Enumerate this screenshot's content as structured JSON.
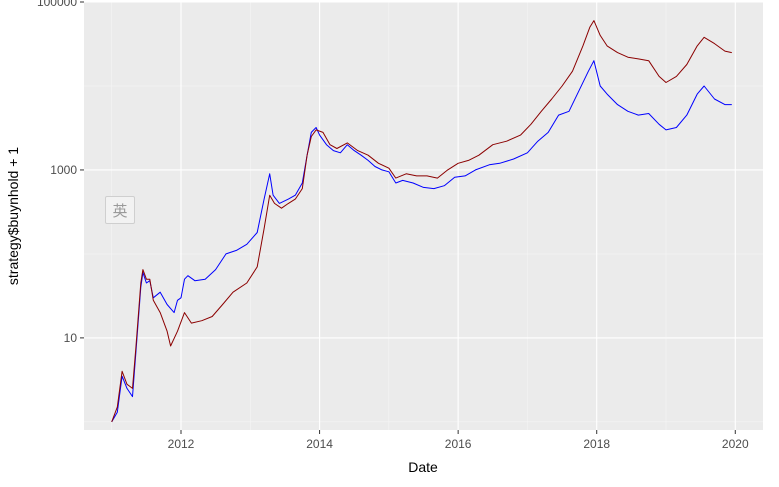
{
  "chart_data": {
    "type": "line",
    "title": "",
    "xlabel": "Date",
    "ylabel": "strategy$buynhold + 1",
    "y_scale": "log10",
    "xlim": [
      2010.6,
      2020.4
    ],
    "ylim": [
      0.8,
      100000
    ],
    "x_ticks": [
      2012,
      2014,
      2016,
      2018,
      2020
    ],
    "x_tick_labels": [
      "2012",
      "2014",
      "2016",
      "2018",
      "2020"
    ],
    "y_ticks": [
      10,
      1000,
      100000
    ],
    "y_tick_labels": [
      "10",
      "1000",
      "100000"
    ],
    "grid": true,
    "legend": "none",
    "series": [
      {
        "color": "#0000ff",
        "points": [
          [
            2011.0,
            1.0
          ],
          [
            2011.08,
            1.3
          ],
          [
            2011.15,
            3.5
          ],
          [
            2011.22,
            2.5
          ],
          [
            2011.3,
            2.0
          ],
          [
            2011.35,
            7.0
          ],
          [
            2011.42,
            40.0
          ],
          [
            2011.45,
            60.0
          ],
          [
            2011.5,
            45.0
          ],
          [
            2011.55,
            48.0
          ],
          [
            2011.6,
            30.0
          ],
          [
            2011.7,
            35.0
          ],
          [
            2011.8,
            25.0
          ],
          [
            2011.9,
            20.0
          ],
          [
            2011.95,
            28.0
          ],
          [
            2012.0,
            30.0
          ],
          [
            2012.05,
            50.0
          ],
          [
            2012.1,
            55.0
          ],
          [
            2012.2,
            48.0
          ],
          [
            2012.35,
            50.0
          ],
          [
            2012.5,
            65.0
          ],
          [
            2012.65,
            100.0
          ],
          [
            2012.8,
            110.0
          ],
          [
            2012.95,
            130.0
          ],
          [
            2013.1,
            180.0
          ],
          [
            2013.2,
            450.0
          ],
          [
            2013.28,
            900.0
          ],
          [
            2013.33,
            500.0
          ],
          [
            2013.42,
            400.0
          ],
          [
            2013.55,
            450.0
          ],
          [
            2013.65,
            500.0
          ],
          [
            2013.75,
            700.0
          ],
          [
            2013.82,
            1500.0
          ],
          [
            2013.88,
            2800.0
          ],
          [
            2013.95,
            3200.0
          ],
          [
            2014.0,
            2600.0
          ],
          [
            2014.1,
            2000.0
          ],
          [
            2014.2,
            1700.0
          ],
          [
            2014.3,
            1600.0
          ],
          [
            2014.4,
            2000.0
          ],
          [
            2014.5,
            1700.0
          ],
          [
            2014.6,
            1500.0
          ],
          [
            2014.7,
            1300.0
          ],
          [
            2014.8,
            1100.0
          ],
          [
            2014.9,
            1000.0
          ],
          [
            2015.0,
            950.0
          ],
          [
            2015.1,
            700.0
          ],
          [
            2015.2,
            750.0
          ],
          [
            2015.35,
            700.0
          ],
          [
            2015.5,
            620.0
          ],
          [
            2015.65,
            600.0
          ],
          [
            2015.8,
            650.0
          ],
          [
            2015.95,
            820.0
          ],
          [
            2016.1,
            850.0
          ],
          [
            2016.25,
            1000.0
          ],
          [
            2016.45,
            1150.0
          ],
          [
            2016.6,
            1200.0
          ],
          [
            2016.8,
            1350.0
          ],
          [
            2017.0,
            1600.0
          ],
          [
            2017.15,
            2200.0
          ],
          [
            2017.3,
            2800.0
          ],
          [
            2017.45,
            4500.0
          ],
          [
            2017.6,
            5000.0
          ],
          [
            2017.75,
            9000.0
          ],
          [
            2017.88,
            15000.0
          ],
          [
            2017.96,
            20000.0
          ],
          [
            2018.05,
            10000.0
          ],
          [
            2018.15,
            8000.0
          ],
          [
            2018.3,
            6000.0
          ],
          [
            2018.45,
            5000.0
          ],
          [
            2018.6,
            4500.0
          ],
          [
            2018.75,
            4700.0
          ],
          [
            2018.9,
            3500.0
          ],
          [
            2019.0,
            3000.0
          ],
          [
            2019.15,
            3200.0
          ],
          [
            2019.3,
            4500.0
          ],
          [
            2019.45,
            8000.0
          ],
          [
            2019.55,
            10000.0
          ],
          [
            2019.7,
            7000.0
          ],
          [
            2019.85,
            6000.0
          ],
          [
            2019.95,
            6000.0
          ]
        ]
      },
      {
        "color": "#8b0000",
        "points": [
          [
            2011.0,
            1.0
          ],
          [
            2011.08,
            1.5
          ],
          [
            2011.15,
            4.0
          ],
          [
            2011.22,
            2.8
          ],
          [
            2011.3,
            2.5
          ],
          [
            2011.35,
            8.0
          ],
          [
            2011.42,
            45.0
          ],
          [
            2011.45,
            65.0
          ],
          [
            2011.5,
            50.0
          ],
          [
            2011.55,
            50.0
          ],
          [
            2011.6,
            28.0
          ],
          [
            2011.7,
            20.0
          ],
          [
            2011.8,
            12.0
          ],
          [
            2011.85,
            8.0
          ],
          [
            2011.95,
            12.0
          ],
          [
            2012.05,
            20.0
          ],
          [
            2012.15,
            15.0
          ],
          [
            2012.3,
            16.0
          ],
          [
            2012.45,
            18.0
          ],
          [
            2012.6,
            25.0
          ],
          [
            2012.75,
            35.0
          ],
          [
            2012.95,
            45.0
          ],
          [
            2013.1,
            70.0
          ],
          [
            2013.2,
            200.0
          ],
          [
            2013.28,
            500.0
          ],
          [
            2013.35,
            400.0
          ],
          [
            2013.45,
            350.0
          ],
          [
            2013.55,
            400.0
          ],
          [
            2013.65,
            450.0
          ],
          [
            2013.75,
            600.0
          ],
          [
            2013.82,
            1500.0
          ],
          [
            2013.88,
            2500.0
          ],
          [
            2013.95,
            3000.0
          ],
          [
            2014.05,
            2800.0
          ],
          [
            2014.15,
            2000.0
          ],
          [
            2014.25,
            1800.0
          ],
          [
            2014.4,
            2100.0
          ],
          [
            2014.55,
            1700.0
          ],
          [
            2014.7,
            1500.0
          ],
          [
            2014.85,
            1200.0
          ],
          [
            2015.0,
            1050.0
          ],
          [
            2015.1,
            800.0
          ],
          [
            2015.25,
            900.0
          ],
          [
            2015.4,
            850.0
          ],
          [
            2015.55,
            850.0
          ],
          [
            2015.7,
            800.0
          ],
          [
            2015.85,
            1000.0
          ],
          [
            2016.0,
            1200.0
          ],
          [
            2016.15,
            1300.0
          ],
          [
            2016.3,
            1500.0
          ],
          [
            2016.5,
            2000.0
          ],
          [
            2016.7,
            2200.0
          ],
          [
            2016.9,
            2600.0
          ],
          [
            2017.05,
            3500.0
          ],
          [
            2017.2,
            5000.0
          ],
          [
            2017.35,
            7000.0
          ],
          [
            2017.5,
            10000.0
          ],
          [
            2017.65,
            15000.0
          ],
          [
            2017.8,
            30000.0
          ],
          [
            2017.9,
            50000.0
          ],
          [
            2017.96,
            60000.0
          ],
          [
            2018.05,
            40000.0
          ],
          [
            2018.15,
            30000.0
          ],
          [
            2018.3,
            25000.0
          ],
          [
            2018.45,
            22000.0
          ],
          [
            2018.6,
            21000.0
          ],
          [
            2018.75,
            20000.0
          ],
          [
            2018.9,
            13000.0
          ],
          [
            2019.0,
            11000.0
          ],
          [
            2019.15,
            13000.0
          ],
          [
            2019.3,
            18000.0
          ],
          [
            2019.45,
            30000.0
          ],
          [
            2019.55,
            38000.0
          ],
          [
            2019.7,
            32000.0
          ],
          [
            2019.85,
            26000.0
          ],
          [
            2019.95,
            25000.0
          ]
        ]
      }
    ]
  },
  "overlay": {
    "badge_glyph": "英",
    "badge_icon": "ime-language-badge"
  }
}
